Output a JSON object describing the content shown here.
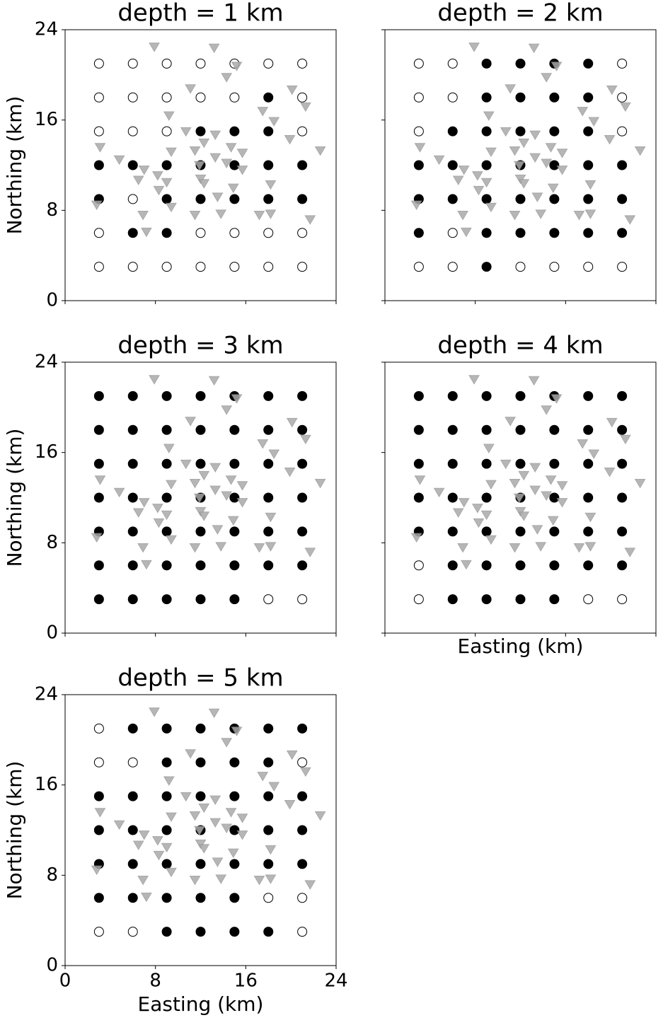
{
  "chart_data": [
    {
      "type": "scatter",
      "title": "depth = 1 km",
      "ylabel": "Northing (km)",
      "xlim": [
        0,
        24
      ],
      "ylim": [
        0,
        24
      ],
      "xticks": [
        0,
        8,
        16,
        24
      ],
      "yticks": [
        0,
        8,
        16,
        24
      ],
      "show_xticklabels": false,
      "show_yticklabels": true,
      "series": [
        {
          "marker": "circle-filled",
          "color": "#000000",
          "x": [
            18,
            12,
            15,
            18,
            3,
            6,
            9,
            12,
            15,
            18,
            21,
            3,
            9,
            12,
            15,
            18,
            21,
            6,
            9
          ],
          "values": [
            18,
            15,
            15,
            15,
            12,
            12,
            12,
            12,
            12,
            12,
            12,
            9,
            9,
            9,
            9,
            9,
            9,
            6,
            6
          ]
        },
        {
          "marker": "circle-open",
          "color": "#000000",
          "x": [
            3,
            6,
            9,
            12,
            15,
            18,
            21,
            3,
            6,
            9,
            12,
            15,
            21,
            3,
            6,
            9,
            21,
            6,
            3,
            12,
            15,
            18,
            21,
            3,
            6,
            9,
            12,
            15,
            18,
            21
          ],
          "values": [
            21,
            21,
            21,
            21,
            21,
            21,
            21,
            18,
            18,
            18,
            18,
            18,
            18,
            15,
            15,
            15,
            15,
            9,
            6,
            6,
            6,
            6,
            6,
            3,
            3,
            3,
            3,
            3,
            3,
            3
          ]
        },
        {
          "marker": "triangle",
          "color": "#aaaaaa",
          "x": [
            7.9,
            13.2,
            14.3,
            15.2,
            11.1,
            20.1,
            21.3,
            17.5,
            18.5,
            9.2,
            10.7,
            13.3,
            19.9,
            22.6,
            3.1,
            4.8,
            12.3,
            14.7,
            15.7,
            9.4,
            11.5,
            13.3,
            14.3,
            15.7,
            7.0,
            6.5,
            8.2,
            9.0,
            8.3,
            11.9,
            12.0,
            12.3,
            18.2,
            13.5,
            14.9,
            9.4,
            2.8,
            6.9,
            7.2,
            11.5,
            13.8,
            17.2,
            18.2,
            21.7
          ],
          "values": [
            22.5,
            22.4,
            19.8,
            20.8,
            18.8,
            18.7,
            17.2,
            16.8,
            15.9,
            16.4,
            15.0,
            14.7,
            14.3,
            13.3,
            13.6,
            12.5,
            14.0,
            13.6,
            13.1,
            13.2,
            13.3,
            12.7,
            12.2,
            11.6,
            11.6,
            10.7,
            11.1,
            10.5,
            9.8,
            12.0,
            10.8,
            10.4,
            10.3,
            9.2,
            10.0,
            8.3,
            8.5,
            7.6,
            6.1,
            7.6,
            7.7,
            7.6,
            7.7,
            7.2
          ]
        }
      ]
    },
    {
      "type": "scatter",
      "title": "depth = 2 km",
      "xlim": [
        0,
        24
      ],
      "ylim": [
        0,
        24
      ],
      "xticks": [
        0,
        8,
        16,
        24
      ],
      "yticks": [
        0,
        8,
        16,
        24
      ],
      "show_xticklabels": false,
      "show_yticklabels": false,
      "series": [
        {
          "marker": "circle-filled",
          "color": "#000000",
          "x": [
            9,
            12,
            15,
            18,
            9,
            12,
            15,
            18,
            6,
            9,
            12,
            15,
            18,
            3,
            6,
            9,
            12,
            15,
            18,
            21,
            3,
            6,
            9,
            12,
            15,
            18,
            21,
            3,
            9,
            12,
            15,
            18,
            21,
            9
          ],
          "values": [
            21,
            21,
            21,
            21,
            18,
            18,
            18,
            18,
            15,
            15,
            15,
            15,
            15,
            12,
            12,
            12,
            12,
            12,
            12,
            12,
            9,
            9,
            9,
            9,
            9,
            9,
            9,
            6,
            6,
            6,
            6,
            6,
            6,
            3
          ]
        },
        {
          "marker": "circle-open",
          "color": "#000000",
          "x": [
            3,
            6,
            21,
            3,
            6,
            21,
            3,
            21,
            6,
            3,
            6,
            12,
            15,
            18,
            21
          ],
          "values": [
            21,
            21,
            21,
            18,
            18,
            18,
            15,
            15,
            6,
            3,
            3,
            3,
            3,
            3,
            3
          ]
        },
        {
          "marker": "triangle",
          "color": "#aaaaaa",
          "x": [
            7.9,
            13.2,
            14.3,
            15.2,
            11.1,
            20.1,
            21.3,
            17.5,
            18.5,
            9.2,
            10.7,
            13.3,
            19.9,
            22.6,
            3.1,
            4.8,
            12.3,
            14.7,
            15.7,
            9.4,
            11.5,
            13.3,
            14.3,
            15.7,
            7.0,
            6.5,
            8.2,
            9.0,
            8.3,
            11.9,
            12.0,
            12.3,
            18.2,
            13.5,
            14.9,
            9.4,
            2.8,
            6.9,
            7.2,
            11.5,
            13.8,
            17.2,
            18.2,
            21.7
          ],
          "values": [
            22.5,
            22.4,
            19.8,
            20.8,
            18.8,
            18.7,
            17.2,
            16.8,
            15.9,
            16.4,
            15.0,
            14.7,
            14.3,
            13.3,
            13.6,
            12.5,
            14.0,
            13.6,
            13.1,
            13.2,
            13.3,
            12.7,
            12.2,
            11.6,
            11.6,
            10.7,
            11.1,
            10.5,
            9.8,
            12.0,
            10.8,
            10.4,
            10.3,
            9.2,
            10.0,
            8.3,
            8.5,
            7.6,
            6.1,
            7.6,
            7.7,
            7.6,
            7.7,
            7.2
          ]
        }
      ]
    },
    {
      "type": "scatter",
      "title": "depth = 3 km",
      "ylabel": "Northing (km)",
      "xlim": [
        0,
        24
      ],
      "ylim": [
        0,
        24
      ],
      "xticks": [
        0,
        8,
        16,
        24
      ],
      "yticks": [
        0,
        8,
        16,
        24
      ],
      "show_xticklabels": false,
      "show_yticklabels": true,
      "series": [
        {
          "marker": "circle-filled",
          "color": "#000000",
          "x": [
            3,
            6,
            9,
            12,
            15,
            18,
            21,
            3,
            6,
            9,
            12,
            15,
            18,
            21,
            3,
            6,
            9,
            12,
            15,
            18,
            21,
            3,
            6,
            9,
            12,
            15,
            18,
            21,
            3,
            6,
            9,
            12,
            15,
            18,
            21,
            3,
            6,
            9,
            12,
            15,
            18,
            21,
            3,
            6,
            9,
            12,
            15
          ],
          "values": [
            21,
            21,
            21,
            21,
            21,
            21,
            21,
            18,
            18,
            18,
            18,
            18,
            18,
            18,
            15,
            15,
            15,
            15,
            15,
            15,
            15,
            12,
            12,
            12,
            12,
            12,
            12,
            12,
            9,
            9,
            9,
            9,
            9,
            9,
            9,
            6,
            6,
            6,
            6,
            6,
            6,
            6,
            3,
            3,
            3,
            3,
            3
          ]
        },
        {
          "marker": "circle-open",
          "color": "#000000",
          "x": [
            18,
            21
          ],
          "values": [
            3,
            3
          ]
        },
        {
          "marker": "triangle",
          "color": "#aaaaaa",
          "x": [
            7.9,
            13.2,
            14.3,
            15.2,
            11.1,
            20.1,
            21.3,
            17.5,
            18.5,
            9.2,
            10.7,
            13.3,
            19.9,
            22.6,
            3.1,
            4.8,
            12.3,
            14.7,
            15.7,
            9.4,
            11.5,
            13.3,
            14.3,
            15.7,
            7.0,
            6.5,
            8.2,
            9.0,
            8.3,
            11.9,
            12.0,
            12.3,
            18.2,
            13.5,
            14.9,
            9.4,
            2.8,
            6.9,
            7.2,
            11.5,
            13.8,
            17.2,
            18.2,
            21.7
          ],
          "values": [
            22.5,
            22.4,
            19.8,
            20.8,
            18.8,
            18.7,
            17.2,
            16.8,
            15.9,
            16.4,
            15.0,
            14.7,
            14.3,
            13.3,
            13.6,
            12.5,
            14.0,
            13.6,
            13.1,
            13.2,
            13.3,
            12.7,
            12.2,
            11.6,
            11.6,
            10.7,
            11.1,
            10.5,
            9.8,
            12.0,
            10.8,
            10.4,
            10.3,
            9.2,
            10.0,
            8.3,
            8.5,
            7.6,
            6.1,
            7.6,
            7.7,
            7.6,
            7.7,
            7.2
          ]
        }
      ]
    },
    {
      "type": "scatter",
      "title": "depth = 4 km",
      "xlabel": "Easting (km)",
      "xlim": [
        0,
        24
      ],
      "ylim": [
        0,
        24
      ],
      "xticks": [
        0,
        8,
        16,
        24
      ],
      "yticks": [
        0,
        8,
        16,
        24
      ],
      "show_xticklabels": false,
      "show_yticklabels": false,
      "series": [
        {
          "marker": "circle-filled",
          "color": "#000000",
          "x": [
            3,
            6,
            9,
            12,
            15,
            18,
            21,
            3,
            6,
            9,
            12,
            15,
            18,
            21,
            3,
            6,
            9,
            12,
            15,
            18,
            21,
            3,
            6,
            9,
            12,
            15,
            18,
            21,
            3,
            6,
            9,
            12,
            15,
            18,
            21,
            6,
            9,
            12,
            15,
            18,
            21,
            6,
            9,
            12,
            15
          ],
          "values": [
            21,
            21,
            21,
            21,
            21,
            21,
            21,
            18,
            18,
            18,
            18,
            18,
            18,
            18,
            15,
            15,
            15,
            15,
            15,
            15,
            15,
            12,
            12,
            12,
            12,
            12,
            12,
            12,
            9,
            9,
            9,
            9,
            9,
            9,
            9,
            6,
            6,
            6,
            6,
            6,
            6,
            3,
            3,
            3,
            3
          ]
        },
        {
          "marker": "circle-open",
          "color": "#000000",
          "x": [
            3,
            3,
            18,
            21
          ],
          "values": [
            6,
            3,
            3,
            3
          ]
        },
        {
          "marker": "triangle",
          "color": "#aaaaaa",
          "x": [
            7.9,
            13.2,
            14.3,
            15.2,
            11.1,
            20.1,
            21.3,
            17.5,
            18.5,
            9.2,
            10.7,
            13.3,
            19.9,
            22.6,
            3.1,
            4.8,
            12.3,
            14.7,
            15.7,
            9.4,
            11.5,
            13.3,
            14.3,
            15.7,
            7.0,
            6.5,
            8.2,
            9.0,
            8.3,
            11.9,
            12.0,
            12.3,
            18.2,
            13.5,
            14.9,
            9.4,
            2.8,
            6.9,
            7.2,
            11.5,
            13.8,
            17.2,
            18.2,
            21.7
          ],
          "values": [
            22.5,
            22.4,
            19.8,
            20.8,
            18.8,
            18.7,
            17.2,
            16.8,
            15.9,
            16.4,
            15.0,
            14.7,
            14.3,
            13.3,
            13.6,
            12.5,
            14.0,
            13.6,
            13.1,
            13.2,
            13.3,
            12.7,
            12.2,
            11.6,
            11.6,
            10.7,
            11.1,
            10.5,
            9.8,
            12.0,
            10.8,
            10.4,
            10.3,
            9.2,
            10.0,
            8.3,
            8.5,
            7.6,
            6.1,
            7.6,
            7.7,
            7.6,
            7.7,
            7.2
          ]
        }
      ]
    },
    {
      "type": "scatter",
      "title": "depth = 5 km",
      "xlabel": "Easting (km)",
      "ylabel": "Northing (km)",
      "xlim": [
        0,
        24
      ],
      "ylim": [
        0,
        24
      ],
      "xticks": [
        0,
        8,
        16,
        24
      ],
      "yticks": [
        0,
        8,
        16,
        24
      ],
      "show_xticklabels": true,
      "show_yticklabels": true,
      "series": [
        {
          "marker": "circle-filled",
          "color": "#000000",
          "x": [
            6,
            9,
            12,
            15,
            18,
            21,
            9,
            12,
            15,
            18,
            3,
            6,
            9,
            12,
            15,
            18,
            21,
            3,
            6,
            9,
            12,
            15,
            18,
            21,
            3,
            6,
            9,
            12,
            15,
            18,
            21,
            3,
            6,
            9,
            12,
            15,
            9,
            12,
            15,
            18
          ],
          "values": [
            21,
            21,
            21,
            21,
            21,
            21,
            18,
            18,
            18,
            18,
            15,
            15,
            15,
            15,
            15,
            15,
            15,
            12,
            12,
            12,
            12,
            12,
            12,
            12,
            9,
            9,
            9,
            9,
            9,
            9,
            9,
            6,
            6,
            6,
            6,
            6,
            3,
            3,
            3,
            3
          ]
        },
        {
          "marker": "circle-open",
          "color": "#000000",
          "x": [
            3,
            3,
            6,
            21,
            18,
            21,
            3,
            6,
            21
          ],
          "values": [
            21,
            18,
            18,
            18,
            6,
            6,
            3,
            3,
            3
          ]
        },
        {
          "marker": "triangle",
          "color": "#aaaaaa",
          "x": [
            7.9,
            13.2,
            14.3,
            15.2,
            11.1,
            20.1,
            21.3,
            17.5,
            18.5,
            9.2,
            10.7,
            13.3,
            19.9,
            22.6,
            3.1,
            4.8,
            12.3,
            14.7,
            15.7,
            9.4,
            11.5,
            13.3,
            14.3,
            15.7,
            7.0,
            6.5,
            8.2,
            9.0,
            8.3,
            11.9,
            12.0,
            12.3,
            18.2,
            13.5,
            14.9,
            9.4,
            2.8,
            6.9,
            7.2,
            11.5,
            13.8,
            17.2,
            18.2,
            21.7
          ],
          "values": [
            22.5,
            22.4,
            19.8,
            20.8,
            18.8,
            18.7,
            17.2,
            16.8,
            15.9,
            16.4,
            15.0,
            14.7,
            14.3,
            13.3,
            13.6,
            12.5,
            14.0,
            13.6,
            13.1,
            13.2,
            13.3,
            12.7,
            12.2,
            11.6,
            11.6,
            10.7,
            11.1,
            10.5,
            9.8,
            12.0,
            10.8,
            10.4,
            10.3,
            9.2,
            10.0,
            8.3,
            8.5,
            7.6,
            6.1,
            7.6,
            7.7,
            7.6,
            7.7,
            7.2
          ]
        }
      ]
    }
  ]
}
